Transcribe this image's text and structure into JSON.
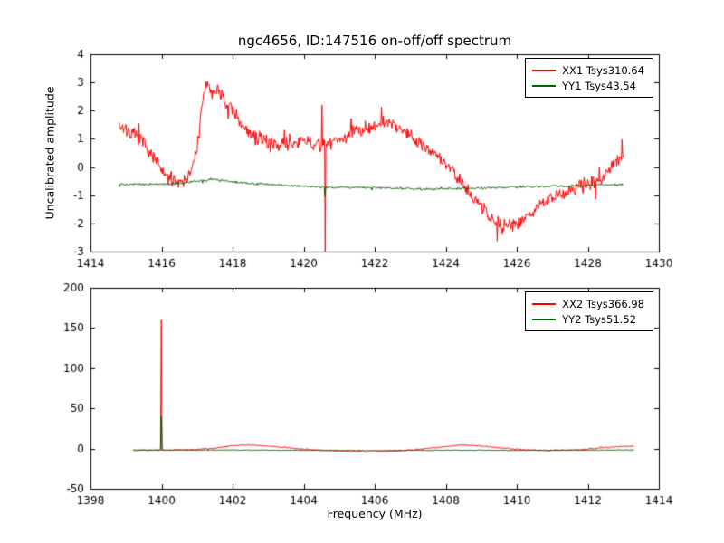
{
  "figure": {
    "background": "#ffffff",
    "frame_color": "#000000",
    "text_color": "#000000"
  },
  "chart_data": [
    {
      "type": "line",
      "title": "ngc4656, ID:147516 on-off/off spectrum",
      "xlabel": "",
      "ylabel": "Uncalibrated amplitude",
      "xlim": [
        1414,
        1430
      ],
      "ylim": [
        -3,
        4
      ],
      "xticks": [
        1414,
        1416,
        1418,
        1420,
        1422,
        1424,
        1426,
        1428,
        1430
      ],
      "yticks": [
        -3,
        -2,
        -1,
        0,
        1,
        2,
        3,
        4
      ],
      "legend_position": "upper right",
      "series": [
        {
          "name": "XX1 Tsys310.64",
          "color": "#ff0000",
          "noise": 0.3,
          "points": 780,
          "x_start": 1414.8,
          "x_end": 1429.0,
          "anchors": [
            [
              1414.8,
              1.55
            ],
            [
              1415.1,
              1.25
            ],
            [
              1415.5,
              0.85
            ],
            [
              1415.8,
              0.3
            ],
            [
              1416.1,
              -0.35
            ],
            [
              1416.5,
              -0.5
            ],
            [
              1416.8,
              -0.3
            ],
            [
              1417.0,
              0.6
            ],
            [
              1417.15,
              2.3
            ],
            [
              1417.3,
              3.0
            ],
            [
              1417.45,
              2.55
            ],
            [
              1417.6,
              2.85
            ],
            [
              1417.8,
              2.2
            ],
            [
              1418.0,
              1.95
            ],
            [
              1418.3,
              1.5
            ],
            [
              1418.6,
              1.05
            ],
            [
              1419.0,
              0.9
            ],
            [
              1419.5,
              0.8
            ],
            [
              1420.0,
              0.9
            ],
            [
              1420.5,
              0.75
            ],
            [
              1421.0,
              1.0
            ],
            [
              1421.5,
              1.3
            ],
            [
              1422.0,
              1.5
            ],
            [
              1422.4,
              1.6
            ],
            [
              1422.8,
              1.35
            ],
            [
              1423.2,
              0.95
            ],
            [
              1423.6,
              0.55
            ],
            [
              1424.0,
              0.1
            ],
            [
              1424.4,
              -0.4
            ],
            [
              1424.8,
              -1.1
            ],
            [
              1425.2,
              -1.7
            ],
            [
              1425.6,
              -2.15
            ],
            [
              1426.0,
              -2.0
            ],
            [
              1426.4,
              -1.6
            ],
            [
              1426.8,
              -1.25
            ],
            [
              1427.2,
              -1.0
            ],
            [
              1427.6,
              -0.8
            ],
            [
              1428.0,
              -0.6
            ],
            [
              1428.4,
              -0.35
            ],
            [
              1428.7,
              0.1
            ],
            [
              1429.0,
              0.55
            ]
          ],
          "spikes": [
            [
              1420.52,
              2.2
            ],
            [
              1420.6,
              -3.0
            ]
          ]
        },
        {
          "name": "YY1 Tsys43.54",
          "color": "#006400",
          "noise": 0.045,
          "points": 700,
          "x_start": 1414.8,
          "x_end": 1429.0,
          "anchors": [
            [
              1414.8,
              -0.6
            ],
            [
              1415.5,
              -0.62
            ],
            [
              1416.5,
              -0.58
            ],
            [
              1417.0,
              -0.5
            ],
            [
              1417.5,
              -0.44
            ],
            [
              1418.0,
              -0.52
            ],
            [
              1418.5,
              -0.58
            ],
            [
              1419.0,
              -0.62
            ],
            [
              1419.5,
              -0.65
            ],
            [
              1420.0,
              -0.68
            ],
            [
              1420.6,
              -0.72
            ],
            [
              1421.5,
              -0.72
            ],
            [
              1422.5,
              -0.75
            ],
            [
              1423.5,
              -0.78
            ],
            [
              1424.5,
              -0.76
            ],
            [
              1425.5,
              -0.72
            ],
            [
              1426.5,
              -0.7
            ],
            [
              1427.5,
              -0.67
            ],
            [
              1428.3,
              -0.64
            ],
            [
              1429.0,
              -0.62
            ]
          ],
          "spikes": [
            [
              1420.6,
              -1.05
            ]
          ]
        }
      ]
    },
    {
      "type": "line",
      "title": "",
      "xlabel": "Frequency (MHz)",
      "ylabel": "",
      "xlim": [
        1398,
        1414
      ],
      "ylim": [
        -50,
        200
      ],
      "xticks": [
        1398,
        1400,
        1402,
        1404,
        1406,
        1408,
        1410,
        1412,
        1414
      ],
      "yticks": [
        -50,
        0,
        50,
        100,
        150,
        200
      ],
      "legend_position": "upper right",
      "series": [
        {
          "name": "XX2 Tsys366.98",
          "color": "#ff0000",
          "noise": 0.8,
          "points": 640,
          "x_start": 1399.2,
          "x_end": 1413.3,
          "anchors": [
            [
              1399.2,
              -2
            ],
            [
              1399.9,
              -2
            ],
            [
              1400.1,
              -2
            ],
            [
              1400.8,
              -1.5
            ],
            [
              1401.5,
              0.5
            ],
            [
              1402.0,
              3.5
            ],
            [
              1402.4,
              4.5
            ],
            [
              1402.9,
              3.5
            ],
            [
              1403.5,
              1.0
            ],
            [
              1404.3,
              -1.5
            ],
            [
              1405.2,
              -3.5
            ],
            [
              1405.8,
              -4.2
            ],
            [
              1406.4,
              -3.8
            ],
            [
              1407.1,
              -1.5
            ],
            [
              1407.8,
              1.5
            ],
            [
              1408.4,
              4.2
            ],
            [
              1408.9,
              3.5
            ],
            [
              1409.5,
              1.0
            ],
            [
              1410.2,
              -1.5
            ],
            [
              1410.9,
              -2.5
            ],
            [
              1411.6,
              -1.8
            ],
            [
              1412.3,
              0.5
            ],
            [
              1412.9,
              2.5
            ],
            [
              1413.3,
              3.0
            ]
          ],
          "spikes": [
            [
              1400.0,
              160.0
            ]
          ]
        },
        {
          "name": "YY2 Tsys51.52",
          "color": "#006400",
          "noise": 0.5,
          "points": 640,
          "x_start": 1399.2,
          "x_end": 1413.3,
          "anchors": [
            [
              1399.2,
              -1.8
            ],
            [
              1400.5,
              -2.0
            ],
            [
              1402.0,
              -1.8
            ],
            [
              1404.0,
              -2.2
            ],
            [
              1406.0,
              -2.5
            ],
            [
              1408.0,
              -2.0
            ],
            [
              1410.0,
              -2.2
            ],
            [
              1412.0,
              -2.0
            ],
            [
              1413.2,
              -1.8
            ]
          ],
          "spikes": [
            [
              1400.0,
              40.0
            ]
          ]
        }
      ]
    }
  ]
}
